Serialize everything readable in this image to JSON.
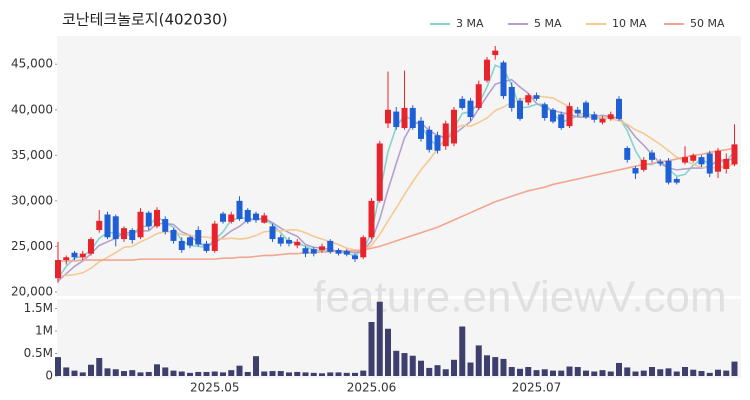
{
  "chart_data": {
    "type": "candlestick",
    "title": "코난테크놀로지(402030)",
    "watermark": "feature.enViewV.com",
    "categories": [
      null,
      null,
      null,
      null,
      null,
      null,
      null,
      null,
      null,
      null,
      null,
      null,
      null,
      null,
      null,
      null,
      null,
      null,
      null,
      "2025.05",
      null,
      null,
      null,
      null,
      null,
      null,
      null,
      null,
      null,
      null,
      null,
      null,
      null,
      null,
      null,
      null,
      null,
      null,
      "2025.06",
      null,
      null,
      null,
      null,
      null,
      null,
      null,
      null,
      null,
      null,
      null,
      null,
      null,
      null,
      null,
      null,
      null,
      null,
      null,
      "2025.07",
      null,
      null,
      null,
      null,
      null,
      null,
      null,
      null,
      null,
      null,
      null,
      null,
      null,
      null,
      null,
      null,
      null,
      null,
      null,
      null,
      null,
      null,
      null,
      null
    ],
    "open": [
      21500,
      23500,
      24300,
      23800,
      24200,
      26800,
      28500,
      28300,
      25800,
      26800,
      26000,
      28700,
      27200,
      28000,
      26800,
      25600,
      26000,
      26800,
      25300,
      24500,
      28600,
      27700,
      30000,
      29000,
      28600,
      27600,
      27200,
      26000,
      25700,
      25100,
      24800,
      24700,
      24600,
      25600,
      24600,
      24500,
      24000,
      23800,
      26000,
      30000,
      38500,
      39800,
      38000,
      40200,
      38800,
      37800,
      37200,
      36000,
      36300,
      41200,
      41000,
      40200,
      43200,
      46000,
      45200,
      42500,
      41000,
      40800,
      41600,
      40600,
      40000,
      39500,
      38200,
      40000,
      40800,
      39500,
      38600,
      39000,
      41200,
      35800,
      33600,
      33400,
      35300,
      34300,
      34400,
      32400,
      34200,
      34400,
      34800,
      35200,
      33200,
      33500,
      34000
    ],
    "high": [
      25500,
      24000,
      24500,
      24500,
      26000,
      29000,
      28800,
      28500,
      27200,
      27000,
      29200,
      28900,
      29300,
      28300,
      27000,
      26000,
      26200,
      27200,
      25600,
      27800,
      28800,
      28800,
      30500,
      29200,
      28800,
      28700,
      27500,
      26300,
      26000,
      25800,
      25000,
      24900,
      25300,
      25800,
      24800,
      24700,
      24200,
      26200,
      30300,
      36600,
      44200,
      40300,
      44300,
      40500,
      39200,
      38200,
      37600,
      38800,
      40300,
      41500,
      41300,
      43200,
      45800,
      47000,
      45400,
      43000,
      41300,
      41800,
      41900,
      40800,
      40200,
      39800,
      40800,
      40300,
      41000,
      39800,
      39300,
      39800,
      41500,
      36000,
      33800,
      34800,
      35600,
      34600,
      34700,
      32600,
      36000,
      35200,
      35000,
      35500,
      35800,
      35200,
      38400
    ],
    "low": [
      21000,
      23000,
      23500,
      23500,
      24000,
      26500,
      25800,
      25000,
      25500,
      25300,
      25800,
      26800,
      27000,
      26300,
      25300,
      24300,
      24800,
      25000,
      24300,
      24300,
      27500,
      27500,
      27800,
      27500,
      27600,
      27500,
      25500,
      25000,
      25000,
      24800,
      23800,
      23900,
      24300,
      24200,
      24000,
      23900,
      23300,
      23600,
      25800,
      29800,
      38000,
      37800,
      37800,
      37800,
      36500,
      35300,
      35200,
      35600,
      36000,
      40000,
      38800,
      40000,
      43000,
      45500,
      41200,
      39800,
      38800,
      40500,
      41000,
      38800,
      38500,
      37800,
      38000,
      39300,
      39000,
      38600,
      38400,
      38800,
      38800,
      34200,
      32400,
      33200,
      34200,
      33800,
      31800,
      31800,
      34000,
      34200,
      33700,
      32600,
      32500,
      33000,
      33800
    ],
    "close": [
      23500,
      23800,
      23800,
      24200,
      25800,
      27800,
      26000,
      25800,
      27000,
      25700,
      28800,
      27200,
      29000,
      26600,
      25600,
      24600,
      25100,
      25200,
      24500,
      27500,
      27700,
      28500,
      28000,
      27700,
      27900,
      28400,
      25800,
      25300,
      25300,
      25500,
      24200,
      24200,
      25000,
      24400,
      24200,
      24100,
      23600,
      26000,
      30000,
      36300,
      40000,
      38100,
      40200,
      38000,
      36800,
      35600,
      35500,
      38500,
      40000,
      40200,
      39200,
      42800,
      45500,
      46500,
      41500,
      40200,
      39000,
      41600,
      41200,
      39100,
      38700,
      38000,
      40400,
      39600,
      39200,
      38900,
      39000,
      39500,
      39000,
      34500,
      33000,
      34500,
      34500,
      34100,
      32000,
      32000,
      34800,
      35000,
      34000,
      33000,
      35500,
      34600,
      36200
    ],
    "up_color": "#e8232c",
    "down_color": "#1f5fd6",
    "ylim": [
      19550,
      48100
    ],
    "yticks": [
      {
        "value": 20000,
        "label": "20,000"
      },
      {
        "value": 25000,
        "label": "25,000"
      },
      {
        "value": 30000,
        "label": "30,000"
      },
      {
        "value": 35000,
        "label": "35,000"
      },
      {
        "value": 40000,
        "label": "40,000"
      },
      {
        "value": 45000,
        "label": "45,000"
      }
    ],
    "series": [
      {
        "name": "3 MA",
        "color": "#86d3cd",
        "values": [
          21500,
          22800,
          23700,
          23900,
          24600,
          25900,
          26500,
          26500,
          26300,
          26200,
          27200,
          27200,
          28300,
          27600,
          27100,
          25600,
          25100,
          25000,
          24900,
          25700,
          26600,
          27900,
          28100,
          28100,
          27900,
          28000,
          27400,
          26500,
          25500,
          25400,
          25000,
          24600,
          24500,
          24500,
          24500,
          24200,
          24000,
          24600,
          26500,
          30800,
          35400,
          38100,
          39400,
          38800,
          38300,
          36800,
          36000,
          36500,
          38000,
          39600,
          39800,
          40700,
          42500,
          44900,
          44500,
          42700,
          40200,
          40300,
          40600,
          40600,
          39700,
          38600,
          39000,
          39300,
          39700,
          39200,
          39000,
          39100,
          39200,
          37700,
          35500,
          34000,
          34000,
          34400,
          33500,
          32700,
          32900,
          33900,
          34600,
          34000,
          34200,
          34400,
          35400
        ]
      },
      {
        "name": "5 MA",
        "color": "#b3a0cf",
        "values": [
          21200,
          22000,
          22800,
          23400,
          24200,
          25100,
          25500,
          25900,
          26500,
          26500,
          26700,
          26700,
          27500,
          27500,
          27400,
          26600,
          26200,
          25400,
          25000,
          25400,
          26000,
          26700,
          27200,
          27900,
          28000,
          28100,
          27600,
          27000,
          26500,
          26100,
          25200,
          24900,
          24800,
          24700,
          24400,
          24400,
          24300,
          24500,
          25600,
          28000,
          31200,
          34100,
          36900,
          38500,
          38600,
          37700,
          37200,
          36900,
          37300,
          38000,
          38700,
          40100,
          41500,
          42800,
          43100,
          43300,
          42500,
          41800,
          40700,
          40200,
          39900,
          39700,
          39500,
          39200,
          39200,
          39200,
          39400,
          39200,
          39100,
          38200,
          37000,
          36100,
          35100,
          34100,
          33600,
          33400,
          33500,
          33600,
          33600,
          33800,
          34500,
          34400,
          34700
        ]
      },
      {
        "name": "10 MA",
        "color": "#f5c993",
        "values": [
          21800,
          21800,
          21900,
          22100,
          22600,
          23300,
          23800,
          24300,
          24900,
          25000,
          25500,
          25900,
          26400,
          26600,
          26600,
          26300,
          26200,
          26100,
          26000,
          25900,
          25800,
          25900,
          25800,
          25900,
          26200,
          26600,
          26700,
          26700,
          26800,
          26800,
          26500,
          26100,
          25800,
          25500,
          25200,
          24800,
          24600,
          24600,
          25100,
          26300,
          27800,
          29200,
          30700,
          32100,
          33400,
          34500,
          35700,
          36900,
          37900,
          38300,
          38200,
          38600,
          39100,
          39900,
          40300,
          40800,
          41100,
          41400,
          41500,
          41400,
          41300,
          40800,
          40300,
          39600,
          39300,
          39200,
          39200,
          39000,
          38800,
          38400,
          37800,
          37400,
          36800,
          36200,
          35500,
          34800,
          34400,
          34000,
          33700,
          33600,
          33700,
          33700,
          34100
        ]
      },
      {
        "name": "50 MA",
        "color": "#f2a590",
        "values": [
          23400,
          23400,
          23400,
          23500,
          23500,
          23500,
          23500,
          23500,
          23500,
          23500,
          23600,
          23600,
          23600,
          23600,
          23600,
          23600,
          23600,
          23600,
          23600,
          23600,
          23700,
          23700,
          23800,
          23800,
          23900,
          24000,
          24000,
          24100,
          24200,
          24200,
          24300,
          24300,
          24400,
          24400,
          24500,
          24500,
          24500,
          24600,
          24800,
          25000,
          25300,
          25600,
          25900,
          26200,
          26500,
          26800,
          27100,
          27500,
          27900,
          28300,
          28700,
          29100,
          29500,
          29900,
          30200,
          30500,
          30800,
          31100,
          31300,
          31500,
          31800,
          32000,
          32200,
          32400,
          32600,
          32800,
          33000,
          33200,
          33400,
          33600,
          33800,
          34000,
          34100,
          34300,
          34400,
          34600,
          34800,
          35000,
          35100,
          35300,
          35500,
          35600,
          35800
        ]
      }
    ],
    "volume": {
      "color": "#3f3f6e",
      "values": [
        420000,
        190000,
        120000,
        80000,
        250000,
        400000,
        170000,
        150000,
        110000,
        130000,
        80000,
        90000,
        260000,
        190000,
        120000,
        100000,
        70000,
        90000,
        90000,
        100000,
        80000,
        130000,
        230000,
        90000,
        440000,
        100000,
        110000,
        110000,
        80000,
        90000,
        80000,
        70000,
        60000,
        80000,
        80000,
        70000,
        70000,
        120000,
        1200000,
        1650000,
        1050000,
        560000,
        510000,
        450000,
        340000,
        180000,
        240000,
        150000,
        360000,
        1100000,
        300000,
        680000,
        460000,
        420000,
        380000,
        200000,
        160000,
        200000,
        130000,
        150000,
        120000,
        120000,
        210000,
        200000,
        120000,
        100000,
        130000,
        100000,
        290000,
        190000,
        100000,
        120000,
        200000,
        150000,
        170000,
        100000,
        200000,
        140000,
        110000,
        70000,
        140000,
        120000,
        320000
      ],
      "ylim": [
        0,
        1700000
      ],
      "yticks": [
        0,
        {
          "value": 500000,
          "label": "0.5M"
        },
        {
          "value": 1000000,
          "label": "1M"
        },
        {
          "value": 1500000,
          "label": "1.5M"
        }
      ]
    }
  }
}
